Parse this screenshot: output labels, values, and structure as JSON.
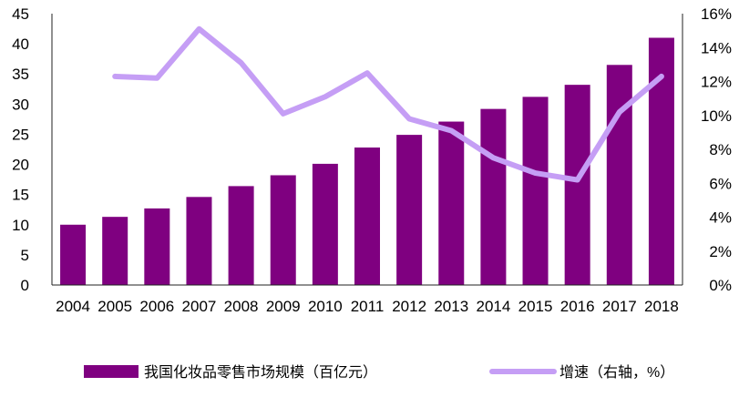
{
  "chart_data": {
    "type": "bar",
    "categories": [
      "2004",
      "2005",
      "2006",
      "2007",
      "2008",
      "2009",
      "2010",
      "2011",
      "2012",
      "2013",
      "2014",
      "2015",
      "2016",
      "2017",
      "2018"
    ],
    "series": [
      {
        "name": "我国化妆品零售市场规模（百亿元）",
        "type": "bar",
        "axis": "left",
        "color": "#7F0080",
        "values": [
          10,
          11.3,
          12.7,
          14.6,
          16.4,
          18.2,
          20.1,
          22.8,
          24.9,
          27.1,
          29.2,
          31.2,
          33.2,
          36.5,
          41.0
        ]
      },
      {
        "name": "增速（右轴，%）",
        "type": "line",
        "axis": "right",
        "color": "#C59EF5",
        "values": [
          null,
          12.3,
          12.2,
          15.1,
          13.1,
          10.1,
          11.1,
          12.5,
          9.8,
          9.1,
          7.5,
          6.6,
          6.2,
          10.2,
          12.3
        ]
      }
    ],
    "y_left": {
      "min": 0,
      "max": 45,
      "ticks": [
        "0",
        "5",
        "10",
        "15",
        "20",
        "25",
        "30",
        "35",
        "40",
        "45"
      ]
    },
    "y_right": {
      "min": 0,
      "max": 16,
      "ticks": [
        "0%",
        "2%",
        "4%",
        "6%",
        "8%",
        "10%",
        "12%",
        "14%",
        "16%"
      ]
    },
    "grid": false,
    "legend_position": "bottom"
  }
}
